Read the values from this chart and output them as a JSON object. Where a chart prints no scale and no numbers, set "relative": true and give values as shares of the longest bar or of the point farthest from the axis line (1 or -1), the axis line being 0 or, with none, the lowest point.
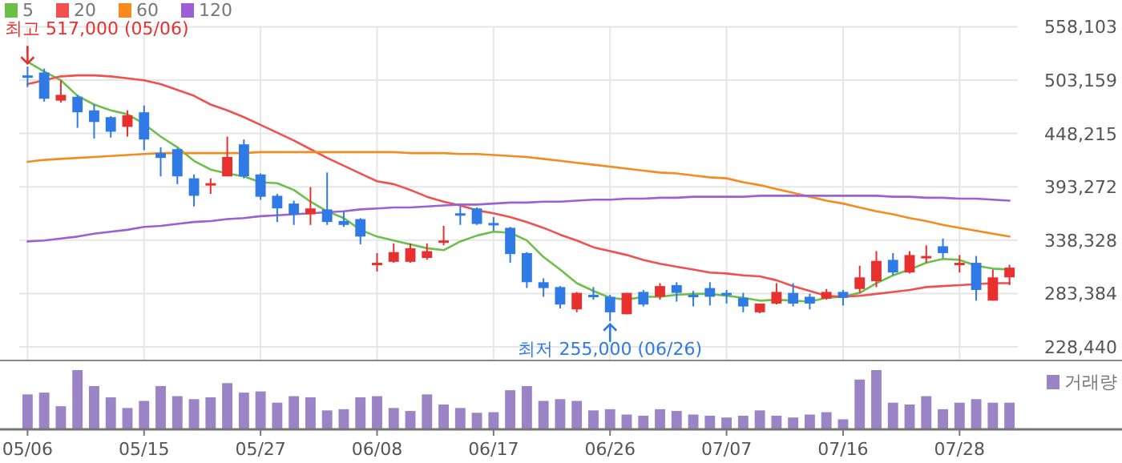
{
  "chart_data": [
    {
      "type": "candlestick",
      "legend": "top left",
      "grid": true,
      "tick_labels": "y",
      "categories": [
        "05/06",
        null,
        null,
        null,
        null,
        null,
        null,
        "05/15",
        null,
        null,
        null,
        null,
        null,
        null,
        "05/27",
        null,
        null,
        null,
        null,
        null,
        null,
        "06/08",
        null,
        null,
        null,
        null,
        null,
        null,
        "06/17",
        null,
        null,
        null,
        null,
        null,
        null,
        "06/26",
        null,
        null,
        null,
        null,
        null,
        null,
        "07/07",
        null,
        null,
        null,
        null,
        null,
        null,
        "07/16",
        null,
        null,
        null,
        null,
        null,
        null,
        "07/28",
        null,
        null,
        null
      ],
      "ylim": [
        214400,
        558103
      ],
      "yticks": [
        {
          "value": 228440,
          "label": "228,440"
        },
        {
          "value": 283384,
          "label": "283,384"
        },
        {
          "value": 338328,
          "label": "338,328"
        },
        {
          "value": 393272,
          "label": "393,272"
        },
        {
          "value": 448215,
          "label": "448,215"
        },
        {
          "value": 503159,
          "label": "503,159"
        },
        {
          "value": 558103,
          "label": "558,103"
        }
      ],
      "ohlc": [
        [
          508000,
          517000,
          496000,
          506000
        ],
        [
          511000,
          515000,
          481000,
          484000
        ],
        [
          482000,
          503000,
          480000,
          488000
        ],
        [
          486000,
          488000,
          454000,
          470000
        ],
        [
          472000,
          478000,
          443000,
          460000
        ],
        [
          465000,
          466000,
          444000,
          450000
        ],
        [
          455000,
          472000,
          445000,
          467000
        ],
        [
          470000,
          477000,
          431000,
          442000
        ],
        [
          428000,
          434000,
          404000,
          423000
        ],
        [
          432000,
          433000,
          396000,
          404000
        ],
        [
          402000,
          406000,
          373000,
          384000
        ],
        [
          395000,
          402000,
          386000,
          397000
        ],
        [
          404000,
          445000,
          404000,
          424000
        ],
        [
          437000,
          442000,
          402000,
          404000
        ],
        [
          406000,
          407000,
          380000,
          383000
        ],
        [
          384000,
          386000,
          357000,
          371000
        ],
        [
          376000,
          379000,
          354000,
          365000
        ],
        [
          365000,
          393000,
          354000,
          371000
        ],
        [
          370000,
          408000,
          354000,
          357000
        ],
        [
          358000,
          368000,
          352000,
          354000
        ],
        [
          360000,
          361000,
          334000,
          342000
        ],
        [
          313000,
          325000,
          306000,
          315000
        ],
        [
          316000,
          335000,
          315000,
          326000
        ],
        [
          316000,
          335000,
          315000,
          330000
        ],
        [
          320000,
          335000,
          318000,
          327000
        ],
        [
          337000,
          353000,
          333000,
          338000
        ],
        [
          366000,
          373000,
          354000,
          364000
        ],
        [
          371000,
          372000,
          354000,
          355000
        ],
        [
          356000,
          362000,
          348000,
          354000
        ],
        [
          351000,
          352000,
          315000,
          324000
        ],
        [
          325000,
          326000,
          289000,
          295000
        ],
        [
          295000,
          299000,
          280000,
          289000
        ],
        [
          290000,
          291000,
          268000,
          272000
        ],
        [
          267000,
          285000,
          264000,
          284000
        ],
        [
          282000,
          290000,
          277000,
          281000
        ],
        [
          280000,
          282000,
          255000,
          264000
        ],
        [
          262000,
          284000,
          262000,
          284000
        ],
        [
          285000,
          287000,
          270000,
          272000
        ],
        [
          280000,
          294000,
          277000,
          291000
        ],
        [
          292000,
          295000,
          275000,
          284000
        ],
        [
          282000,
          286000,
          270000,
          281000
        ],
        [
          289000,
          295000,
          271000,
          280000
        ],
        [
          284000,
          287000,
          273000,
          283000
        ],
        [
          279000,
          284000,
          264000,
          270000
        ],
        [
          264000,
          273000,
          263000,
          273000
        ],
        [
          273000,
          294000,
          272000,
          285000
        ],
        [
          284000,
          294000,
          270000,
          273000
        ],
        [
          280000,
          283000,
          267000,
          273000
        ],
        [
          278000,
          288000,
          277000,
          285000
        ],
        [
          285000,
          287000,
          271000,
          279000
        ],
        [
          288000,
          312000,
          284000,
          300000
        ],
        [
          296000,
          327000,
          290000,
          317000
        ],
        [
          318000,
          325000,
          302000,
          305000
        ],
        [
          305000,
          327000,
          304000,
          323000
        ],
        [
          321000,
          333000,
          315000,
          322000
        ],
        [
          332000,
          340000,
          320000,
          325000
        ],
        [
          313000,
          323000,
          305000,
          315000
        ],
        [
          315000,
          322000,
          276000,
          287000
        ],
        [
          276000,
          308000,
          276000,
          300000
        ],
        [
          300000,
          313000,
          292000,
          310000
        ]
      ],
      "colors": [
        "#2f7ae5",
        "#2f7ae5",
        "#e8312f",
        "#2f7ae5",
        "#2f7ae5",
        "#2f7ae5",
        "#e8312f",
        "#2f7ae5",
        "#2f7ae5",
        "#2f7ae5",
        "#2f7ae5",
        "#e8312f",
        "#e8312f",
        "#2f7ae5",
        "#2f7ae5",
        "#2f7ae5",
        "#2f7ae5",
        "#e8312f",
        "#2f7ae5",
        "#2f7ae5",
        "#2f7ae5",
        "#e8312f",
        "#e8312f",
        "#e8312f",
        "#e8312f",
        "#e8312f",
        "#2f7ae5",
        "#2f7ae5",
        "#2f7ae5",
        "#2f7ae5",
        "#2f7ae5",
        "#2f7ae5",
        "#2f7ae5",
        "#e8312f",
        "#2f7ae5",
        "#2f7ae5",
        "#e8312f",
        "#2f7ae5",
        "#e8312f",
        "#2f7ae5",
        "#2f7ae5",
        "#2f7ae5",
        "#2f7ae5",
        "#2f7ae5",
        "#e8312f",
        "#e8312f",
        "#2f7ae5",
        "#2f7ae5",
        "#e8312f",
        "#2f7ae5",
        "#e8312f",
        "#e8312f",
        "#2f7ae5",
        "#e8312f",
        "#e8312f",
        "#2f7ae5",
        "#e8312f",
        "#2f7ae5",
        "#e8312f",
        "#e8312f"
      ],
      "series": [
        {
          "type": "line",
          "name": "5",
          "color": "#6cc04a",
          "values": [
            522000,
            512000,
            503000,
            487000,
            478000,
            472000,
            468000,
            458000,
            445000,
            434000,
            420000,
            411000,
            407000,
            404000,
            398000,
            397000,
            390000,
            378000,
            368000,
            361000,
            349000,
            342000,
            338000,
            334000,
            330000,
            328000,
            337000,
            343000,
            347000,
            346000,
            338000,
            321000,
            308000,
            294000,
            286000,
            279000,
            277000,
            280000,
            280000,
            282000,
            283000,
            283000,
            281000,
            279000,
            276000,
            277000,
            276000,
            275000,
            279000,
            280000,
            284000,
            294000,
            302000,
            308000,
            315000,
            319000,
            318000,
            312000,
            309000,
            308000
          ]
        },
        {
          "type": "line",
          "name": "20",
          "color": "#f05050",
          "values": [
            499000,
            503000,
            507000,
            508000,
            508000,
            507000,
            505000,
            503000,
            499000,
            493000,
            487000,
            478000,
            472000,
            465000,
            457000,
            449000,
            441000,
            432000,
            423000,
            415000,
            407000,
            399000,
            396000,
            390000,
            383000,
            378000,
            374000,
            369000,
            366000,
            362000,
            357000,
            351000,
            344000,
            338000,
            331000,
            327000,
            323000,
            318000,
            314000,
            311000,
            308000,
            305000,
            304000,
            302000,
            301000,
            297000,
            291000,
            286000,
            281000,
            280000,
            281000,
            283000,
            285000,
            287000,
            290000,
            291000,
            292000,
            293000,
            294000,
            294000
          ]
        },
        {
          "type": "line",
          "name": "60",
          "color": "#f58a1f",
          "values": [
            419000,
            421000,
            422000,
            423000,
            424000,
            425000,
            426000,
            427000,
            428000,
            428000,
            428000,
            428000,
            428000,
            428000,
            429000,
            429000,
            429000,
            429000,
            429000,
            429000,
            429000,
            429000,
            429000,
            428000,
            428000,
            428000,
            427000,
            427000,
            426000,
            425000,
            424000,
            422000,
            420000,
            418000,
            416000,
            414000,
            412000,
            410000,
            408000,
            407000,
            405000,
            403000,
            402000,
            398000,
            395000,
            391000,
            387000,
            383000,
            379000,
            376000,
            372000,
            368000,
            365000,
            361000,
            358000,
            354000,
            351000,
            348000,
            345000,
            342000
          ]
        },
        {
          "type": "line",
          "name": "120",
          "color": "#9b5fd6",
          "values": [
            337000,
            338000,
            340000,
            342000,
            345000,
            347000,
            349000,
            352000,
            353000,
            355000,
            357000,
            358000,
            360000,
            361000,
            363000,
            364000,
            365000,
            366000,
            367000,
            368000,
            370000,
            371000,
            372000,
            372000,
            373000,
            374000,
            375000,
            375000,
            376000,
            377000,
            377000,
            378000,
            378000,
            379000,
            380000,
            380000,
            381000,
            381000,
            382000,
            382000,
            383000,
            383000,
            383000,
            383000,
            384000,
            384000,
            384000,
            384000,
            384000,
            384000,
            384000,
            384000,
            383000,
            383000,
            382000,
            382000,
            381000,
            381000,
            380000,
            379000
          ]
        }
      ],
      "annotations": [
        {
          "text": "최고 517,000 (05/06)",
          "x": "05/06",
          "y": 517000
        },
        {
          "text": "최저 255,000 (06/26)",
          "x": "06/26",
          "y": 255000
        }
      ]
    },
    {
      "type": "bar",
      "relative": true,
      "legend": "top right",
      "categories": [
        "05/06",
        null,
        null,
        null,
        null,
        null,
        null,
        "05/15",
        null,
        null,
        null,
        null,
        null,
        null,
        "05/27",
        null,
        null,
        null,
        null,
        null,
        null,
        "06/08",
        null,
        null,
        null,
        null,
        null,
        null,
        "06/17",
        null,
        null,
        null,
        null,
        null,
        null,
        "06/26",
        null,
        null,
        null,
        null,
        null,
        null,
        "07/07",
        null,
        null,
        null,
        null,
        null,
        null,
        "07/16",
        null,
        null,
        null,
        null,
        null,
        null,
        "07/28",
        null,
        null,
        null
      ],
      "series": [
        {
          "name": "거래량",
          "color": "#9b84c6",
          "values": [
            0.59,
            0.62,
            0.39,
            1,
            0.73,
            0.54,
            0.36,
            0.48,
            0.73,
            0.56,
            0.51,
            0.54,
            0.78,
            0.62,
            0.64,
            0.45,
            0.56,
            0.54,
            0.32,
            0.34,
            0.54,
            0.56,
            0.36,
            0.31,
            0.59,
            0.42,
            0.36,
            0.28,
            0.29,
            0.66,
            0.73,
            0.48,
            0.51,
            0.48,
            0.32,
            0.34,
            0.25,
            0.23,
            0.34,
            0.31,
            0.25,
            0.23,
            0.2,
            0.23,
            0.32,
            0.23,
            0.2,
            0.25,
            0.29,
            0.17,
            0.84,
            1,
            0.45,
            0.42,
            0.56,
            0.34,
            0.45,
            0.51,
            0.45,
            0.45
          ]
        }
      ]
    }
  ]
}
